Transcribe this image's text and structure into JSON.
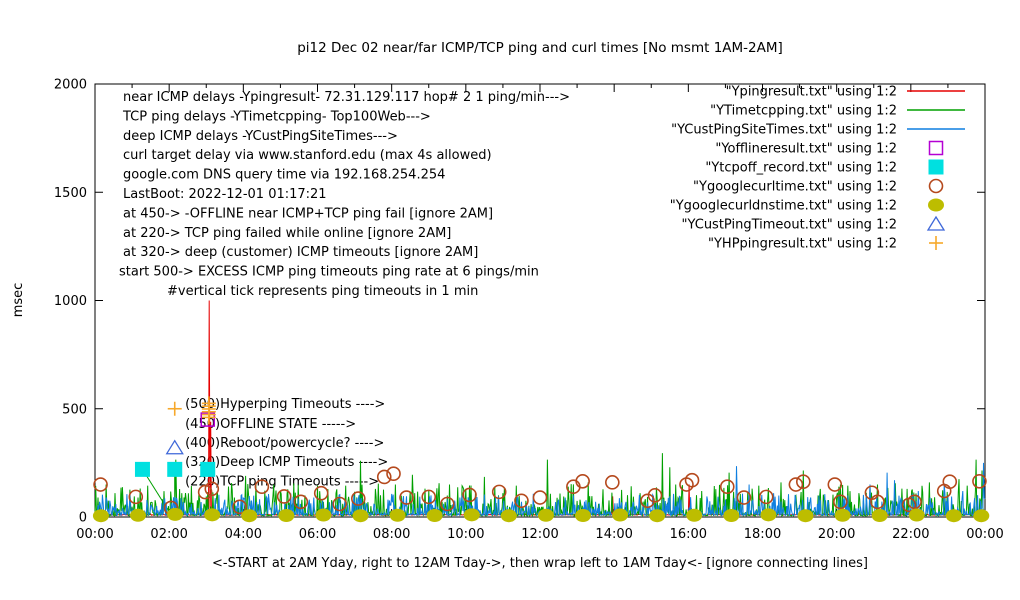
{
  "chart_data": {
    "type": "line+scatter",
    "title": "pi12 Dec 02  near/far ICMP/TCP ping and curl times [No msmt 1AM-2AM]",
    "xlabel": "<-START at 2AM Yday, right to 12AM Tday->, then wrap left to 1AM Tday<- [ignore connecting lines]",
    "ylabel": "msec",
    "ylim": [
      0,
      2000
    ],
    "yticks": [
      0,
      500,
      1000,
      1500,
      2000
    ],
    "xtick_labels": [
      "00:00",
      "02:00",
      "04:00",
      "06:00",
      "08:00",
      "10:00",
      "12:00",
      "14:00",
      "16:00",
      "18:00",
      "20:00",
      "22:00",
      "00:00"
    ],
    "x_hours_span": 24,
    "grid": false,
    "legend_position": "top-right",
    "info_lines": [
      {
        "text": "near ICMP delays -Ypingresult- 72.31.129.117 hop# 2 1 ping/min--->",
        "x": 123
      },
      {
        "text": "TCP ping delays -YTimetcpping- Top100Web--->",
        "x": 123
      },
      {
        "text": "deep ICMP delays -YCustPingSiteTimes--->",
        "x": 123
      },
      {
        "text": "curl target delay via www.stanford.edu (max 4s allowed)",
        "x": 123
      },
      {
        "text": "google.com DNS query time via 192.168.254.254",
        "x": 123
      },
      {
        "text": "LastBoot: 2022-12-01 01:17:21",
        "x": 123
      },
      {
        "text": "at 450-> -OFFLINE near ICMP+TCP ping fail [ignore 2AM]",
        "x": 123
      },
      {
        "text": "at 220-> TCP ping failed while online [ignore 2AM]",
        "x": 123
      },
      {
        "text": "at 320-> deep (customer) ICMP timeouts [ignore 2AM]",
        "x": 123
      },
      {
        "text": "start 500-> EXCESS ICMP ping timeouts ping rate at 6 pings/min",
        "x": 119
      },
      {
        "text": "#vertical tick represents ping timeouts in 1 min",
        "x": 167
      }
    ],
    "annotations": [
      {
        "text": "(500)Hyperping Timeouts ---->",
        "ms": 525
      },
      {
        "text": "(450)OFFLINE STATE ----->",
        "ms": 432
      },
      {
        "text": "(400)Reboot/powercycle? ---->",
        "ms": 344
      },
      {
        "text": "(320)Deep ICMP Timeouts ---->",
        "ms": 256
      },
      {
        "text": "(220)TCP ping Timeouts ----->",
        "ms": 167
      }
    ],
    "annotation_x_hour": 2.43,
    "series": [
      {
        "label": "\"Ypingresult.txt\" using 1:2",
        "kind": "line",
        "color": "#e60000",
        "baseline": 8,
        "amp": 4,
        "seed": 11,
        "spikes": [
          [
            3.08,
            1000
          ],
          [
            3.12,
            440
          ],
          [
            13.95,
            95
          ],
          [
            16.02,
            150
          ]
        ]
      },
      {
        "label": "\"YTimetcpping.txt\" using 1:2",
        "kind": "line",
        "color": "#00a000",
        "baseline": 5,
        "amp": 150,
        "seed": 7,
        "spikes": [
          [
            0.08,
            90
          ],
          [
            0.3,
            150
          ],
          [
            0.75,
            60
          ],
          [
            1.05,
            95
          ],
          [
            2.18,
            265
          ],
          [
            2.4,
            90
          ],
          [
            3.3,
            120
          ],
          [
            3.75,
            90
          ],
          [
            4.05,
            190
          ],
          [
            4.35,
            150
          ],
          [
            4.8,
            100
          ],
          [
            5.0,
            120
          ],
          [
            5.35,
            155
          ],
          [
            5.65,
            100
          ],
          [
            6.0,
            145
          ],
          [
            6.5,
            110
          ],
          [
            7.15,
            260
          ],
          [
            7.55,
            130
          ],
          [
            8.1,
            150
          ],
          [
            8.55,
            195
          ],
          [
            9.0,
            125
          ],
          [
            9.55,
            150
          ],
          [
            10.0,
            130
          ],
          [
            10.5,
            185
          ],
          [
            11.0,
            110
          ],
          [
            11.35,
            145
          ],
          [
            12.2,
            265
          ],
          [
            12.75,
            140
          ],
          [
            13.3,
            160
          ],
          [
            14.2,
            125
          ],
          [
            14.7,
            110
          ],
          [
            15.3,
            295
          ],
          [
            15.5,
            230
          ],
          [
            15.65,
            150
          ],
          [
            16.35,
            120
          ],
          [
            17.1,
            205
          ],
          [
            17.9,
            145
          ],
          [
            18.5,
            160
          ],
          [
            19.1,
            215
          ],
          [
            19.55,
            130
          ],
          [
            20.1,
            150
          ],
          [
            20.6,
            110
          ],
          [
            21.1,
            150
          ],
          [
            21.9,
            130
          ],
          [
            22.5,
            160
          ],
          [
            23.3,
            175
          ],
          [
            23.75,
            265
          ],
          [
            23.92,
            215
          ]
        ],
        "overlay_segments": [
          [
            [
              1.28,
              220
            ],
            [
              2.06,
              8
            ]
          ],
          [
            [
              2.15,
              220
            ],
            [
              2.15,
              5
            ]
          ]
        ]
      },
      {
        "label": "\"YCustPingSiteTimes.txt\" using 1:2",
        "kind": "line",
        "color": "#0f7fe0",
        "baseline": 8,
        "amp": 100,
        "seed": 23,
        "spikes": [
          [
            0.12,
            70
          ],
          [
            0.55,
            60
          ],
          [
            1.5,
            50
          ],
          [
            2.6,
            60
          ],
          [
            3.5,
            80
          ],
          [
            4.6,
            70
          ],
          [
            5.9,
            90
          ],
          [
            6.4,
            70
          ],
          [
            7.9,
            80
          ],
          [
            8.9,
            70
          ],
          [
            9.9,
            100
          ],
          [
            10.8,
            90
          ],
          [
            11.5,
            70
          ],
          [
            12.5,
            80
          ],
          [
            13.5,
            70
          ],
          [
            14.5,
            60
          ],
          [
            15.8,
            80
          ],
          [
            16.5,
            95
          ],
          [
            17.3,
            235
          ],
          [
            17.65,
            150
          ],
          [
            18.3,
            110
          ],
          [
            19.3,
            90
          ],
          [
            20.3,
            100
          ],
          [
            20.9,
            150
          ],
          [
            21.35,
            205
          ],
          [
            21.55,
            170
          ],
          [
            22.2,
            120
          ],
          [
            22.9,
            155
          ],
          [
            23.4,
            120
          ],
          [
            23.95,
            250
          ]
        ]
      },
      {
        "label": "\"Yofflineresult.txt\" using 1:2",
        "kind": "points",
        "marker": "open-square",
        "color": "#b400d3",
        "points": [
          [
            3.04,
            450
          ]
        ]
      },
      {
        "label": "\"Ytcpoff_record.txt\" using 1:2",
        "kind": "points",
        "marker": "filled-square",
        "color": "#00e0e0",
        "points": [
          [
            1.28,
            220
          ],
          [
            2.15,
            220
          ],
          [
            3.04,
            220
          ]
        ]
      },
      {
        "label": "\"Ygooglecurltime.txt\" using 1:2",
        "kind": "points",
        "marker": "open-circle",
        "color": "#b5491d",
        "points": [
          [
            0.15,
            150
          ],
          [
            1.1,
            93
          ],
          [
            2.05,
            42
          ],
          [
            2.97,
            115
          ],
          [
            3.15,
            130
          ],
          [
            3.9,
            47
          ],
          [
            4.5,
            140
          ],
          [
            5.1,
            95
          ],
          [
            5.55,
            70
          ],
          [
            6.1,
            110
          ],
          [
            6.6,
            60
          ],
          [
            7.1,
            85
          ],
          [
            7.8,
            185
          ],
          [
            8.05,
            200
          ],
          [
            8.4,
            90
          ],
          [
            9.0,
            93
          ],
          [
            9.5,
            60
          ],
          [
            10.1,
            102
          ],
          [
            10.9,
            116
          ],
          [
            11.5,
            75
          ],
          [
            12.0,
            90
          ],
          [
            12.9,
            140
          ],
          [
            13.15,
            165
          ],
          [
            13.95,
            160
          ],
          [
            14.9,
            75
          ],
          [
            15.1,
            100
          ],
          [
            15.95,
            150
          ],
          [
            16.1,
            170
          ],
          [
            17.05,
            140
          ],
          [
            17.5,
            90
          ],
          [
            18.1,
            93
          ],
          [
            18.9,
            150
          ],
          [
            19.1,
            163
          ],
          [
            19.95,
            150
          ],
          [
            20.1,
            70
          ],
          [
            20.95,
            112
          ],
          [
            21.1,
            70
          ],
          [
            21.95,
            56
          ],
          [
            22.1,
            70
          ],
          [
            22.9,
            120
          ],
          [
            23.05,
            163
          ],
          [
            23.85,
            165
          ]
        ]
      },
      {
        "label": "\"Ygooglecurldnstime.txt\" using 1:2",
        "kind": "points",
        "marker": "filled-circle",
        "color": "#bdbd00",
        "points": [
          [
            0.16,
            6
          ],
          [
            1.16,
            8
          ],
          [
            2.16,
            12
          ],
          [
            3.16,
            10
          ],
          [
            4.16,
            6
          ],
          [
            5.16,
            7
          ],
          [
            6.16,
            9
          ],
          [
            7.16,
            6
          ],
          [
            8.16,
            8
          ],
          [
            9.16,
            7
          ],
          [
            10.16,
            10
          ],
          [
            11.16,
            6
          ],
          [
            12.16,
            8
          ],
          [
            13.16,
            7
          ],
          [
            14.16,
            9
          ],
          [
            15.16,
            6
          ],
          [
            16.16,
            8
          ],
          [
            17.16,
            7
          ],
          [
            18.16,
            10
          ],
          [
            19.16,
            6
          ],
          [
            20.16,
            8
          ],
          [
            21.16,
            7
          ],
          [
            22.16,
            9
          ],
          [
            23.16,
            6
          ],
          [
            23.9,
            6
          ]
        ]
      },
      {
        "label": "\"YCustPingTimeout.txt\" using 1:2",
        "kind": "points",
        "marker": "open-triangle",
        "color": "#3f68d9",
        "points": [
          [
            2.15,
            320
          ]
        ]
      },
      {
        "label": "\"YHPpingresult.txt\" using 1:2",
        "kind": "points",
        "marker": "plus",
        "color": "#f7a82a",
        "points": [
          [
            2.15,
            500
          ],
          [
            3.07,
            460
          ],
          [
            3.07,
            473
          ],
          [
            3.07,
            486
          ],
          [
            3.07,
            499
          ],
          [
            3.07,
            512
          ],
          [
            3.07,
            525
          ]
        ]
      }
    ]
  }
}
